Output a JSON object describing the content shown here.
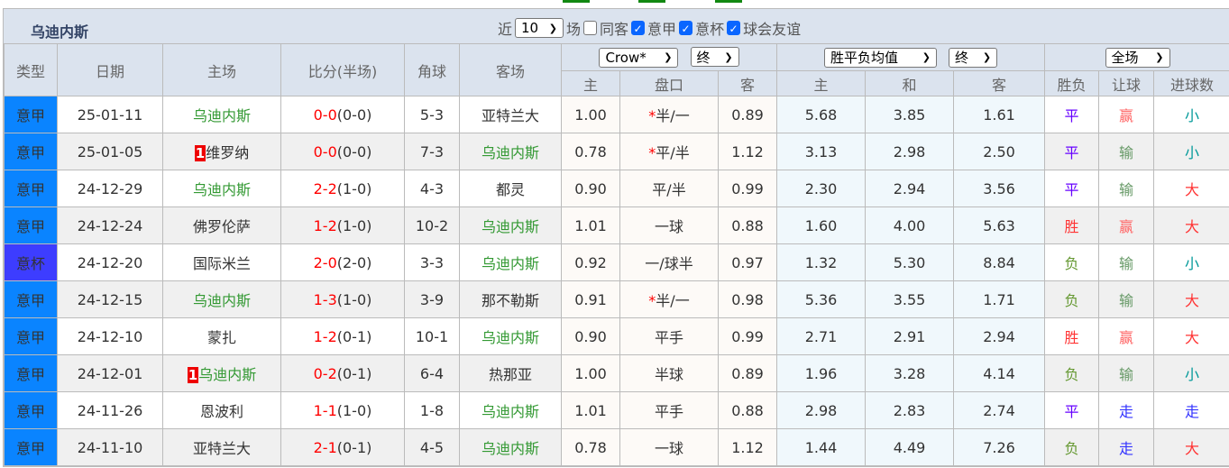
{
  "team_title": "乌迪内斯",
  "filters": {
    "prefix": "近",
    "count": "10",
    "suffix": "场",
    "same_away": "同客",
    "same_away_checked": false,
    "leagues": [
      {
        "label": "意甲",
        "checked": true
      },
      {
        "label": "意杯",
        "checked": true
      },
      {
        "label": "球会友谊",
        "checked": true
      }
    ]
  },
  "headers": {
    "type": "类型",
    "date": "日期",
    "home": "主场",
    "score": "比分(半场)",
    "corner": "角球",
    "away": "客场",
    "company_select": "Crow*",
    "odds_time_select": "终",
    "avg_select": "胜平负均值",
    "avg_time_select": "终",
    "period_select": "全场",
    "ah_home": "主",
    "ah_line": "盘口",
    "ah_away": "客",
    "eu_home": "主",
    "eu_draw": "和",
    "eu_away": "客",
    "wl": "胜负",
    "hcap": "让球",
    "goals": "进球数"
  },
  "colors": {
    "league": "#0a84ff",
    "cup": "#3d3dff",
    "udinese": "#339933",
    "平": "#6600ff",
    "胜": "#ff3333",
    "负": "#669933",
    "赢": "#ff6666",
    "输": "#669966",
    "走": "#3333ff",
    "小": "#009999",
    "大": "#ff3333"
  },
  "rows": [
    {
      "type": "意甲",
      "date": "25-01-11",
      "home": "乌迪内斯",
      "home_red": "",
      "score": "0-0",
      "half": "(0-0)",
      "corner": "5-3",
      "away": "亚特兰大",
      "ah_home": "1.00",
      "ah_star": "*",
      "ah_line": "半/一",
      "ah_away": "0.89",
      "eu_home": "5.68",
      "eu_draw": "3.85",
      "eu_away": "1.61",
      "wl": "平",
      "hcap": "赢",
      "goals": "小"
    },
    {
      "type": "意甲",
      "date": "25-01-05",
      "home": "维罗纳",
      "home_red": "1",
      "score": "0-0",
      "half": "(0-0)",
      "corner": "7-3",
      "away": "乌迪内斯",
      "ah_home": "0.78",
      "ah_star": "*",
      "ah_line": "平/半",
      "ah_away": "1.12",
      "eu_home": "3.13",
      "eu_draw": "2.98",
      "eu_away": "2.50",
      "wl": "平",
      "hcap": "输",
      "goals": "小"
    },
    {
      "type": "意甲",
      "date": "24-12-29",
      "home": "乌迪内斯",
      "home_red": "",
      "score": "2-2",
      "half": "(1-0)",
      "corner": "4-3",
      "away": "都灵",
      "ah_home": "0.90",
      "ah_star": "",
      "ah_line": "平/半",
      "ah_away": "0.99",
      "eu_home": "2.30",
      "eu_draw": "2.94",
      "eu_away": "3.56",
      "wl": "平",
      "hcap": "输",
      "goals": "大"
    },
    {
      "type": "意甲",
      "date": "24-12-24",
      "home": "佛罗伦萨",
      "home_red": "",
      "score": "1-2",
      "half": "(1-0)",
      "corner": "10-2",
      "away": "乌迪内斯",
      "ah_home": "1.01",
      "ah_star": "",
      "ah_line": "一球",
      "ah_away": "0.88",
      "eu_home": "1.60",
      "eu_draw": "4.00",
      "eu_away": "5.63",
      "wl": "胜",
      "hcap": "赢",
      "goals": "大"
    },
    {
      "type": "意杯",
      "date": "24-12-20",
      "home": "国际米兰",
      "home_red": "",
      "score": "2-0",
      "half": "(2-0)",
      "corner": "3-3",
      "away": "乌迪内斯",
      "ah_home": "0.92",
      "ah_star": "",
      "ah_line": "一/球半",
      "ah_away": "0.97",
      "eu_home": "1.32",
      "eu_draw": "5.30",
      "eu_away": "8.84",
      "wl": "负",
      "hcap": "输",
      "goals": "小"
    },
    {
      "type": "意甲",
      "date": "24-12-15",
      "home": "乌迪内斯",
      "home_red": "",
      "score": "1-3",
      "half": "(1-0)",
      "corner": "3-9",
      "away": "那不勒斯",
      "ah_home": "0.91",
      "ah_star": "*",
      "ah_line": "半/一",
      "ah_away": "0.98",
      "eu_home": "5.36",
      "eu_draw": "3.55",
      "eu_away": "1.71",
      "wl": "负",
      "hcap": "输",
      "goals": "大"
    },
    {
      "type": "意甲",
      "date": "24-12-10",
      "home": "蒙扎",
      "home_red": "",
      "score": "1-2",
      "half": "(0-1)",
      "corner": "10-1",
      "away": "乌迪内斯",
      "ah_home": "0.90",
      "ah_star": "",
      "ah_line": "平手",
      "ah_away": "0.99",
      "eu_home": "2.71",
      "eu_draw": "2.91",
      "eu_away": "2.94",
      "wl": "胜",
      "hcap": "赢",
      "goals": "大"
    },
    {
      "type": "意甲",
      "date": "24-12-01",
      "home": "乌迪内斯",
      "home_red": "1",
      "score": "0-2",
      "half": "(0-1)",
      "corner": "6-4",
      "away": "热那亚",
      "ah_home": "1.00",
      "ah_star": "",
      "ah_line": "半球",
      "ah_away": "0.89",
      "eu_home": "1.96",
      "eu_draw": "3.28",
      "eu_away": "4.14",
      "wl": "负",
      "hcap": "输",
      "goals": "小"
    },
    {
      "type": "意甲",
      "date": "24-11-26",
      "home": "恩波利",
      "home_red": "",
      "score": "1-1",
      "half": "(1-0)",
      "corner": "1-8",
      "away": "乌迪内斯",
      "ah_home": "1.01",
      "ah_star": "",
      "ah_line": "平手",
      "ah_away": "0.88",
      "eu_home": "2.98",
      "eu_draw": "2.83",
      "eu_away": "2.74",
      "wl": "平",
      "hcap": "走",
      "goals": "走"
    },
    {
      "type": "意甲",
      "date": "24-11-10",
      "home": "亚特兰大",
      "home_red": "",
      "score": "2-1",
      "half": "(0-1)",
      "corner": "4-5",
      "away": "乌迪内斯",
      "ah_home": "0.78",
      "ah_star": "",
      "ah_line": "一球",
      "ah_away": "1.12",
      "eu_home": "1.44",
      "eu_draw": "4.49",
      "eu_away": "7.26",
      "wl": "负",
      "hcap": "走",
      "goals": "大"
    }
  ]
}
